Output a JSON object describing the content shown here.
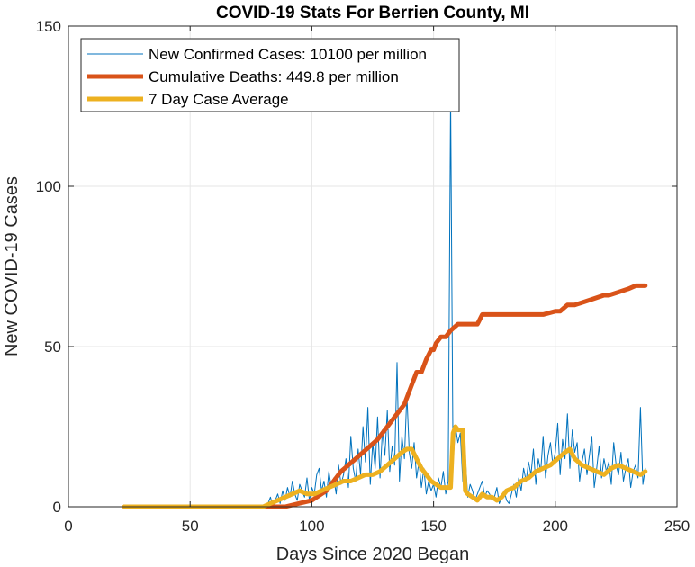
{
  "chart_data": {
    "type": "line",
    "title": "COVID-19 Stats For Berrien County, MI",
    "xlabel": "Days Since 2020 Began",
    "ylabel": "New COVID-19 Cases",
    "xlim": [
      0,
      250
    ],
    "ylim": [
      0,
      150
    ],
    "xticks": [
      0,
      50,
      100,
      150,
      200,
      250
    ],
    "yticks": [
      0,
      50,
      100,
      150
    ],
    "grid": true,
    "legend_position": "top-left",
    "series": [
      {
        "name": "New Confirmed Cases: 10100 per million",
        "color": "#0072BD",
        "style": "thin",
        "x": [
          23,
          30,
          40,
          50,
          60,
          70,
          80,
          82,
          83,
          84,
          85,
          86,
          87,
          88,
          89,
          90,
          91,
          92,
          93,
          94,
          95,
          96,
          97,
          98,
          99,
          100,
          101,
          102,
          103,
          104,
          105,
          106,
          107,
          108,
          109,
          110,
          111,
          112,
          113,
          114,
          115,
          116,
          117,
          118,
          119,
          120,
          121,
          122,
          123,
          124,
          125,
          126,
          127,
          128,
          129,
          130,
          131,
          132,
          133,
          134,
          135,
          136,
          137,
          138,
          139,
          140,
          141,
          142,
          143,
          144,
          145,
          146,
          147,
          148,
          149,
          150,
          151,
          152,
          153,
          154,
          155,
          156,
          157,
          158,
          159,
          160,
          161,
          162,
          163,
          164,
          165,
          166,
          167,
          168,
          169,
          170,
          171,
          172,
          173,
          174,
          175,
          176,
          177,
          178,
          179,
          180,
          181,
          182,
          183,
          184,
          185,
          186,
          187,
          188,
          189,
          190,
          191,
          192,
          193,
          194,
          195,
          196,
          197,
          198,
          199,
          200,
          201,
          202,
          203,
          204,
          205,
          206,
          207,
          208,
          209,
          210,
          211,
          212,
          213,
          214,
          215,
          216,
          217,
          218,
          219,
          220,
          221,
          222,
          223,
          224,
          225,
          226,
          227,
          228,
          229,
          230,
          231,
          232,
          233,
          234,
          235,
          236,
          237
        ],
        "y": [
          0,
          0,
          0,
          0,
          0,
          0,
          0,
          1,
          3,
          0,
          2,
          4,
          1,
          5,
          2,
          6,
          3,
          8,
          4,
          2,
          7,
          5,
          3,
          9,
          2,
          6,
          4,
          10,
          12,
          5,
          8,
          3,
          11,
          6,
          9,
          4,
          13,
          7,
          10,
          15,
          6,
          22,
          12,
          8,
          18,
          10,
          25,
          14,
          31,
          7,
          20,
          12,
          28,
          9,
          24,
          16,
          30,
          11,
          19,
          13,
          45,
          8,
          22,
          15,
          35,
          17,
          12,
          20,
          9,
          14,
          6,
          12,
          4,
          8,
          5,
          7,
          3,
          9,
          6,
          11,
          4,
          8,
          128,
          14,
          25,
          20,
          23,
          8,
          16,
          3,
          7,
          5,
          2,
          4,
          6,
          8,
          3,
          5,
          4,
          2,
          3,
          6,
          1,
          3,
          5,
          2,
          1,
          4,
          7,
          3,
          9,
          5,
          12,
          8,
          14,
          10,
          18,
          7,
          15,
          11,
          22,
          9,
          16,
          20,
          13,
          17,
          26,
          10,
          21,
          15,
          29,
          12,
          24,
          17,
          20,
          8,
          14,
          18,
          10,
          16,
          22,
          6,
          12,
          19,
          9,
          15,
          11,
          14,
          7,
          20,
          13,
          10,
          17,
          8,
          12,
          15,
          6,
          11,
          13,
          9,
          31,
          7,
          12
        ]
      },
      {
        "name": "Cumulative Deaths: 449.8 per million",
        "color": "#D95319",
        "style": "thick",
        "x": [
          23,
          80,
          89,
          100,
          106,
          109,
          112,
          115,
          118,
          121,
          124,
          127,
          130,
          133,
          136,
          138,
          140,
          142,
          143,
          144,
          145,
          147,
          149,
          150,
          151,
          152,
          153,
          155,
          157,
          160,
          165,
          168,
          170,
          180,
          190,
          195,
          200,
          202,
          205,
          208,
          212,
          216,
          220,
          222,
          226,
          230,
          233,
          237
        ],
        "y": [
          0,
          0,
          0,
          2,
          5,
          8,
          11,
          13,
          15,
          17,
          19,
          21,
          24,
          27,
          30,
          32,
          36,
          40,
          42,
          42,
          42,
          46,
          49,
          49,
          51,
          52,
          53,
          53,
          55,
          57,
          57,
          57,
          60,
          60,
          60,
          60,
          61,
          61,
          63,
          63,
          64,
          65,
          66,
          66,
          67,
          68,
          69,
          69
        ]
      },
      {
        "name": "7 Day Case Average",
        "color": "#EDB120",
        "style": "thick",
        "x": [
          23,
          80,
          83,
          86,
          89,
          92,
          95,
          98,
          101,
          104,
          107,
          110,
          113,
          116,
          119,
          122,
          125,
          128,
          131,
          134,
          137,
          139,
          141,
          143,
          145,
          147,
          149,
          151,
          153,
          155,
          156,
          157,
          158,
          159,
          160,
          161,
          162,
          163,
          164,
          166,
          168,
          170,
          172,
          174,
          176,
          178,
          180,
          183,
          186,
          189,
          192,
          195,
          198,
          201,
          204,
          206,
          208,
          211,
          214,
          217,
          220,
          223,
          226,
          229,
          232,
          235,
          237
        ],
        "y": [
          0,
          0,
          1,
          2,
          3,
          4,
          5,
          4,
          4,
          5,
          6,
          7,
          8,
          8,
          9,
          10,
          10,
          11,
          13,
          15,
          17,
          18,
          18,
          15,
          12,
          10,
          8,
          7,
          6,
          6,
          6,
          6,
          23,
          25,
          24,
          24,
          24,
          5,
          4,
          3,
          2,
          4,
          3,
          3,
          2,
          3,
          5,
          6,
          8,
          9,
          11,
          12,
          13,
          15,
          17,
          18,
          15,
          13,
          12,
          11,
          10,
          12,
          13,
          12,
          11,
          10,
          11
        ]
      }
    ]
  }
}
